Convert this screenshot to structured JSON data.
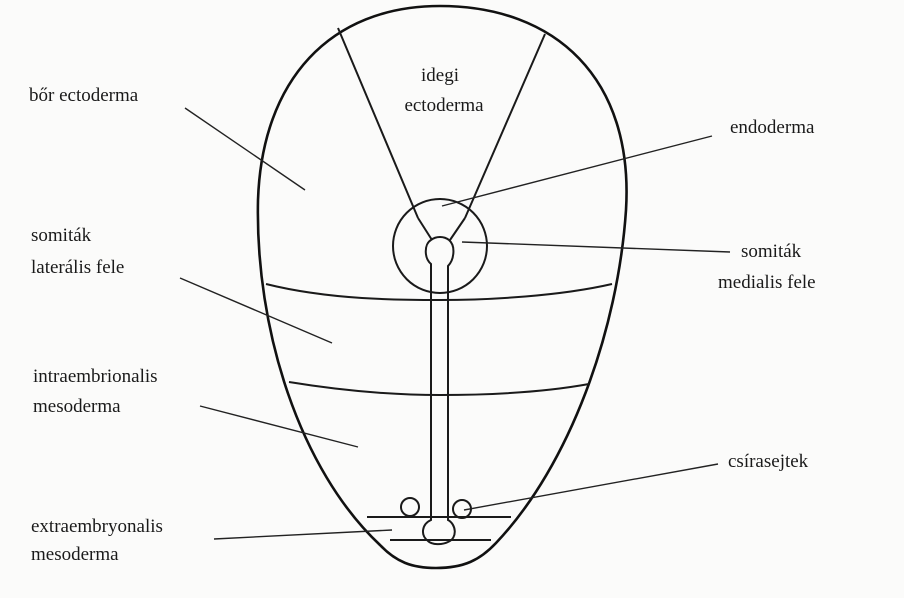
{
  "labels": {
    "bor_ectoderma": "bőr ectoderma",
    "idegi_ectoderma_1": "idegi",
    "idegi_ectoderma_2": "ectoderma",
    "endoderma": "endoderma",
    "somitak_lateralis_1": "somiták",
    "somitak_lateralis_2": "laterális fele",
    "somitak_medialis_1": "somiták",
    "somitak_medialis_2": "medialis fele",
    "intraembrionalis_1": "intraembrionalis",
    "intraembrionalis_2": "mesoderma",
    "csirasejtek": "csírasejtek",
    "extraembryonalis_1": "extraembryonalis",
    "extraembryonalis_2": "mesoderma"
  }
}
